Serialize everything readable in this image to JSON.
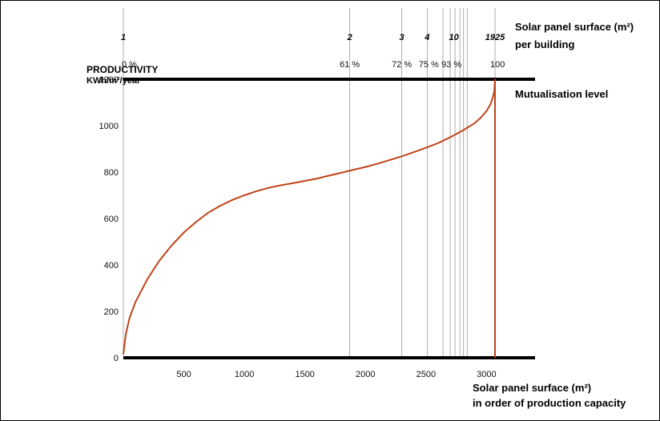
{
  "chart_data": {
    "type": "line",
    "ylabel_line1": "PRODUCTIVITY",
    "ylabel_line2": "KWh/m²/year",
    "xlabel_line1": "Solar panel surface (m²)",
    "xlabel_line2": "in order of production capacity",
    "top_axis_label_line1": "Solar panel surface (m²)",
    "top_axis_label_line2": "per building",
    "level_label": "Mutualisation level",
    "level_value": 1200,
    "ylim": [
      0,
      1200
    ],
    "xlim": [
      0,
      3400
    ],
    "y_ticks": [
      0,
      200,
      400,
      600,
      800,
      1000,
      1200
    ],
    "x_ticks": [
      500,
      1000,
      1500,
      2000,
      2500,
      3000
    ],
    "grid": "vertical lines at building boundaries",
    "line_color": "#c0441a",
    "end_x": 3070,
    "series": [
      {
        "x": [
          0,
          20,
          50,
          100,
          200,
          300,
          400,
          500,
          600,
          700,
          800,
          900,
          1000,
          1100,
          1200,
          1300,
          1400,
          1500,
          1600,
          1700,
          1800,
          1900,
          2000,
          2100,
          2200,
          2300,
          2400,
          2500,
          2600,
          2700,
          2800,
          2900,
          2950,
          3000,
          3030,
          3050,
          3065,
          3070
        ],
        "y": [
          15,
          100,
          170,
          240,
          340,
          420,
          485,
          540,
          585,
          625,
          655,
          680,
          700,
          718,
          732,
          743,
          752,
          762,
          772,
          785,
          797,
          810,
          822,
          836,
          852,
          868,
          886,
          905,
          925,
          950,
          978,
          1010,
          1033,
          1063,
          1090,
          1118,
          1150,
          1200
        ]
      }
    ],
    "building_markers": [
      {
        "x": 0,
        "label": "1",
        "pct": "0 %"
      },
      {
        "x": 1870,
        "label": "2",
        "pct": "61 %"
      },
      {
        "x": 2300,
        "label": "3",
        "pct": "72 %"
      },
      {
        "x": 2510,
        "label": "4",
        "pct": "75 %"
      },
      {
        "x": 2640,
        "label": "",
        "pct": ""
      },
      {
        "x": 2700,
        "label": "",
        "pct": ""
      },
      {
        "x": 2740,
        "label": "",
        "pct": ""
      },
      {
        "x": 2780,
        "label": "",
        "pct": "93 %"
      },
      {
        "x": 2810,
        "label": "10",
        "pct": ""
      },
      {
        "x": 2840,
        "label": "",
        "pct": ""
      },
      {
        "x": 3070,
        "label": "1925",
        "pct": "100"
      }
    ]
  }
}
